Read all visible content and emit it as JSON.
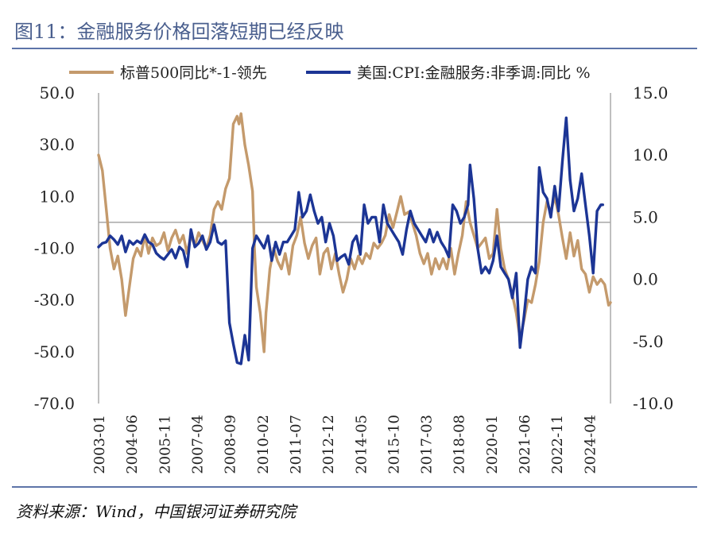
{
  "figure": {
    "title": "图11：金融服务价格回落短期已经反映",
    "source": "资料来源：Wind，中国银河证券研究院"
  },
  "chart_data": {
    "type": "line",
    "legend_position": "top",
    "grid": false,
    "x_ticks": [
      "2003-01",
      "2004-06",
      "2005-11",
      "2007-04",
      "2008-09",
      "2010-02",
      "2011-07",
      "2012-12",
      "2014-05",
      "2015-10",
      "2017-03",
      "2018-08",
      "2020-01",
      "2021-06",
      "2022-11",
      "2024-04"
    ],
    "x_range": [
      "2003-01",
      "2025-03"
    ],
    "y_left": {
      "range": [
        -70,
        50
      ],
      "ticks": [
        "50.0",
        "30.0",
        "10.0",
        "-10.0",
        "-30.0",
        "-50.0",
        "-70.0"
      ]
    },
    "y_right": {
      "range": [
        -10,
        15
      ],
      "ticks": [
        "15.0",
        "10.0",
        "5.0",
        "0.0",
        "-5.0",
        "-10.0"
      ]
    },
    "reference_line": {
      "axis": "left",
      "value": 0
    },
    "colors": {
      "sp500": "#c49a6c",
      "cpi": "#1c3595",
      "axis": "#bfbfbf",
      "zero": "#a6a6a6"
    },
    "series": [
      {
        "name": "标普500同比*-1-领先",
        "axis": "left",
        "points": [
          [
            "2003-01",
            26
          ],
          [
            "2003-03",
            20
          ],
          [
            "2003-05",
            5
          ],
          [
            "2003-07",
            -10
          ],
          [
            "2003-09",
            -18
          ],
          [
            "2003-11",
            -13
          ],
          [
            "2004-01",
            -22
          ],
          [
            "2004-03",
            -36
          ],
          [
            "2004-05",
            -25
          ],
          [
            "2004-07",
            -14
          ],
          [
            "2004-09",
            -10
          ],
          [
            "2004-11",
            -13
          ],
          [
            "2005-01",
            -5
          ],
          [
            "2005-03",
            -12
          ],
          [
            "2005-05",
            -6
          ],
          [
            "2005-07",
            -9
          ],
          [
            "2005-09",
            -8
          ],
          [
            "2005-11",
            -4
          ],
          [
            "2006-01",
            -11
          ],
          [
            "2006-03",
            -6
          ],
          [
            "2006-05",
            -3
          ],
          [
            "2006-07",
            -8
          ],
          [
            "2006-09",
            -5
          ],
          [
            "2006-11",
            -12
          ],
          [
            "2007-01",
            -5
          ],
          [
            "2007-03",
            -9
          ],
          [
            "2007-05",
            -4
          ],
          [
            "2007-07",
            -7
          ],
          [
            "2007-09",
            -10
          ],
          [
            "2007-11",
            -5
          ],
          [
            "2008-01",
            5
          ],
          [
            "2008-03",
            8
          ],
          [
            "2008-05",
            5
          ],
          [
            "2008-07",
            13
          ],
          [
            "2008-09",
            17
          ],
          [
            "2008-11",
            38
          ],
          [
            "2009-01",
            41
          ],
          [
            "2009-02",
            38
          ],
          [
            "2009-03",
            42
          ],
          [
            "2009-05",
            30
          ],
          [
            "2009-07",
            22
          ],
          [
            "2009-09",
            12
          ],
          [
            "2009-10",
            -10
          ],
          [
            "2009-11",
            -25
          ],
          [
            "2010-01",
            -35
          ],
          [
            "2010-03",
            -50
          ],
          [
            "2010-04",
            -35
          ],
          [
            "2010-06",
            -18
          ],
          [
            "2010-08",
            -10
          ],
          [
            "2010-10",
            -15
          ],
          [
            "2010-12",
            -18
          ],
          [
            "2011-02",
            -12
          ],
          [
            "2011-04",
            -20
          ],
          [
            "2011-06",
            -9
          ],
          [
            "2011-08",
            -5
          ],
          [
            "2011-10",
            2
          ],
          [
            "2011-12",
            -8
          ],
          [
            "2012-02",
            -14
          ],
          [
            "2012-04",
            -9
          ],
          [
            "2012-06",
            -6
          ],
          [
            "2012-08",
            -20
          ],
          [
            "2012-10",
            -12
          ],
          [
            "2012-12",
            -10
          ],
          [
            "2013-02",
            -18
          ],
          [
            "2013-04",
            -12
          ],
          [
            "2013-06",
            -20
          ],
          [
            "2013-08",
            -27
          ],
          [
            "2013-10",
            -22
          ],
          [
            "2013-12",
            -14
          ],
          [
            "2014-02",
            -18
          ],
          [
            "2014-04",
            -13
          ],
          [
            "2014-06",
            -16
          ],
          [
            "2014-08",
            -12
          ],
          [
            "2014-10",
            -14
          ],
          [
            "2014-12",
            -8
          ],
          [
            "2015-02",
            -10
          ],
          [
            "2015-04",
            -8
          ],
          [
            "2015-06",
            -5
          ],
          [
            "2015-08",
            3
          ],
          [
            "2015-10",
            -2
          ],
          [
            "2015-12",
            4
          ],
          [
            "2016-02",
            10
          ],
          [
            "2016-04",
            3
          ],
          [
            "2016-06",
            4
          ],
          [
            "2016-08",
            0
          ],
          [
            "2016-10",
            -5
          ],
          [
            "2016-12",
            -12
          ],
          [
            "2017-02",
            -16
          ],
          [
            "2017-04",
            -12
          ],
          [
            "2017-06",
            -20
          ],
          [
            "2017-08",
            -14
          ],
          [
            "2017-10",
            -18
          ],
          [
            "2017-12",
            -14
          ],
          [
            "2018-02",
            -18
          ],
          [
            "2018-04",
            -10
          ],
          [
            "2018-06",
            -20
          ],
          [
            "2018-08",
            -12
          ],
          [
            "2018-10",
            -5
          ],
          [
            "2018-12",
            8
          ],
          [
            "2019-02",
            0
          ],
          [
            "2019-04",
            -5
          ],
          [
            "2019-06",
            -10
          ],
          [
            "2019-08",
            -8
          ],
          [
            "2019-10",
            -6
          ],
          [
            "2019-12",
            -14
          ],
          [
            "2020-02",
            -12
          ],
          [
            "2020-04",
            5
          ],
          [
            "2020-06",
            -10
          ],
          [
            "2020-08",
            -18
          ],
          [
            "2020-10",
            -22
          ],
          [
            "2020-12",
            -28
          ],
          [
            "2021-02",
            -35
          ],
          [
            "2021-04",
            -45
          ],
          [
            "2021-06",
            -38
          ],
          [
            "2021-08",
            -30
          ],
          [
            "2021-10",
            -31
          ],
          [
            "2021-12",
            -24
          ],
          [
            "2022-02",
            -15
          ],
          [
            "2022-04",
            0
          ],
          [
            "2022-06",
            8
          ],
          [
            "2022-08",
            4
          ],
          [
            "2022-10",
            10
          ],
          [
            "2022-12",
            3
          ],
          [
            "2023-02",
            -6
          ],
          [
            "2023-04",
            -14
          ],
          [
            "2023-06",
            -4
          ],
          [
            "2023-08",
            -13
          ],
          [
            "2023-10",
            -7
          ],
          [
            "2023-12",
            -18
          ],
          [
            "2024-02",
            -20
          ],
          [
            "2024-04",
            -27
          ],
          [
            "2024-06",
            -21
          ],
          [
            "2024-08",
            -24
          ],
          [
            "2024-10",
            -22
          ],
          [
            "2024-12",
            -24
          ],
          [
            "2025-02",
            -32
          ],
          [
            "2025-03",
            -31
          ]
        ]
      },
      {
        "name": "美国:CPI:金融服务:非季调:同比  %",
        "axis": "right",
        "points": [
          [
            "2003-01",
            2.6
          ],
          [
            "2003-03",
            2.9
          ],
          [
            "2003-05",
            3.0
          ],
          [
            "2003-07",
            3.5
          ],
          [
            "2003-09",
            3.2
          ],
          [
            "2003-11",
            2.8
          ],
          [
            "2004-01",
            3.5
          ],
          [
            "2004-03",
            2.2
          ],
          [
            "2004-05",
            3.1
          ],
          [
            "2004-07",
            2.8
          ],
          [
            "2004-09",
            3.1
          ],
          [
            "2004-11",
            2.9
          ],
          [
            "2005-01",
            3.6
          ],
          [
            "2005-03",
            3.0
          ],
          [
            "2005-05",
            2.8
          ],
          [
            "2005-07",
            2.1
          ],
          [
            "2005-09",
            1.8
          ],
          [
            "2005-11",
            1.6
          ],
          [
            "2006-01",
            2.0
          ],
          [
            "2006-03",
            2.4
          ],
          [
            "2006-05",
            1.7
          ],
          [
            "2006-07",
            2.6
          ],
          [
            "2006-09",
            2.3
          ],
          [
            "2006-11",
            1.0
          ],
          [
            "2007-01",
            4.0
          ],
          [
            "2007-03",
            2.6
          ],
          [
            "2007-05",
            2.9
          ],
          [
            "2007-07",
            3.5
          ],
          [
            "2007-09",
            2.4
          ],
          [
            "2007-11",
            3.0
          ],
          [
            "2008-01",
            4.4
          ],
          [
            "2008-03",
            3.0
          ],
          [
            "2008-05",
            2.8
          ],
          [
            "2008-07",
            3.1
          ],
          [
            "2008-09",
            -3.5
          ],
          [
            "2008-11",
            -5.2
          ],
          [
            "2009-01",
            -6.7
          ],
          [
            "2009-03",
            -6.8
          ],
          [
            "2009-05",
            -4.5
          ],
          [
            "2009-07",
            -6.5
          ],
          [
            "2009-09",
            2.5
          ],
          [
            "2009-11",
            3.5
          ],
          [
            "2010-01",
            3.0
          ],
          [
            "2010-03",
            2.5
          ],
          [
            "2010-05",
            3.5
          ],
          [
            "2010-07",
            1.5
          ],
          [
            "2010-09",
            3.0
          ],
          [
            "2010-11",
            2.0
          ],
          [
            "2011-01",
            3.0
          ],
          [
            "2011-03",
            3.0
          ],
          [
            "2011-05",
            3.5
          ],
          [
            "2011-07",
            4.0
          ],
          [
            "2011-09",
            7.0
          ],
          [
            "2011-11",
            5.0
          ],
          [
            "2012-01",
            5.5
          ],
          [
            "2012-03",
            6.8
          ],
          [
            "2012-05",
            5.5
          ],
          [
            "2012-07",
            4.5
          ],
          [
            "2012-09",
            5.0
          ],
          [
            "2012-11",
            3.0
          ],
          [
            "2013-01",
            4.5
          ],
          [
            "2013-03",
            3.5
          ],
          [
            "2013-05",
            1.5
          ],
          [
            "2013-07",
            1.8
          ],
          [
            "2013-09",
            2.0
          ],
          [
            "2013-11",
            1.2
          ],
          [
            "2014-01",
            3.0
          ],
          [
            "2014-03",
            3.5
          ],
          [
            "2014-05",
            2.0
          ],
          [
            "2014-07",
            6.0
          ],
          [
            "2014-09",
            4.5
          ],
          [
            "2014-11",
            5.0
          ],
          [
            "2015-01",
            5.0
          ],
          [
            "2015-03",
            3.0
          ],
          [
            "2015-05",
            6.0
          ],
          [
            "2015-07",
            4.5
          ],
          [
            "2015-09",
            4.0
          ],
          [
            "2015-11",
            3.5
          ],
          [
            "2016-01",
            3.0
          ],
          [
            "2016-03",
            2.0
          ],
          [
            "2016-05",
            4.0
          ],
          [
            "2016-07",
            5.5
          ],
          [
            "2016-09",
            4.5
          ],
          [
            "2016-11",
            4.0
          ],
          [
            "2017-01",
            3.5
          ],
          [
            "2017-03",
            3.0
          ],
          [
            "2017-05",
            4.0
          ],
          [
            "2017-07",
            3.0
          ],
          [
            "2017-09",
            3.8
          ],
          [
            "2017-11",
            3.0
          ],
          [
            "2018-01",
            2.5
          ],
          [
            "2018-03",
            1.8
          ],
          [
            "2018-05",
            6.0
          ],
          [
            "2018-07",
            5.5
          ],
          [
            "2018-09",
            4.5
          ],
          [
            "2018-11",
            5.0
          ],
          [
            "2019-01",
            6.0
          ],
          [
            "2019-02",
            9.2
          ],
          [
            "2019-04",
            6.5
          ],
          [
            "2019-06",
            2.5
          ],
          [
            "2019-08",
            0.5
          ],
          [
            "2019-10",
            1.0
          ],
          [
            "2019-12",
            0.5
          ],
          [
            "2020-02",
            1.5
          ],
          [
            "2020-04",
            3.5
          ],
          [
            "2020-06",
            1.0
          ],
          [
            "2020-08",
            0.5
          ],
          [
            "2020-10",
            0.0
          ],
          [
            "2020-12",
            -1.5
          ],
          [
            "2021-02",
            0.5
          ],
          [
            "2021-04",
            -5.5
          ],
          [
            "2021-06",
            -3.0
          ],
          [
            "2021-08",
            0.0
          ],
          [
            "2021-10",
            1.0
          ],
          [
            "2021-12",
            0.5
          ],
          [
            "2022-02",
            9.0
          ],
          [
            "2022-04",
            7.0
          ],
          [
            "2022-06",
            6.5
          ],
          [
            "2022-08",
            5.0
          ],
          [
            "2022-10",
            7.5
          ],
          [
            "2022-12",
            5.5
          ],
          [
            "2023-02",
            9.5
          ],
          [
            "2023-04",
            13.0
          ],
          [
            "2023-06",
            8.0
          ],
          [
            "2023-08",
            5.5
          ],
          [
            "2023-10",
            6.5
          ],
          [
            "2023-12",
            8.5
          ],
          [
            "2024-02",
            6.0
          ],
          [
            "2024-04",
            3.5
          ],
          [
            "2024-06",
            0.5
          ],
          [
            "2024-08",
            5.5
          ],
          [
            "2024-10",
            6.0
          ],
          [
            "2024-11",
            6.0
          ]
        ]
      }
    ]
  }
}
